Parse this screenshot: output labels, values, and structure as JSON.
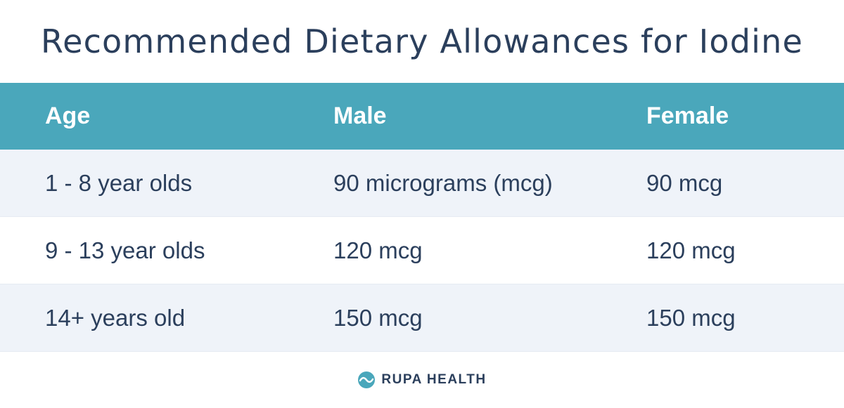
{
  "title": "Recommended Dietary Allowances for Iodine",
  "table": {
    "headers": [
      "Age",
      "Male",
      "Female"
    ],
    "rows": [
      [
        "1 - 8 year olds",
        "90 micrograms (mcg)",
        "90 mcg"
      ],
      [
        "9 - 13 year olds",
        "120 mcg",
        "120 mcg"
      ],
      [
        "14+ years old",
        "150 mcg",
        "150 mcg"
      ]
    ]
  },
  "footer": {
    "brand": "RUPA HEALTH",
    "logo_icon": "rupa-wave-logo-icon"
  },
  "colors": {
    "header_bg": "#4aa7bb",
    "shaded_row_bg": "#eff3f9",
    "text": "#2b3f5c",
    "header_text": "#ffffff"
  }
}
